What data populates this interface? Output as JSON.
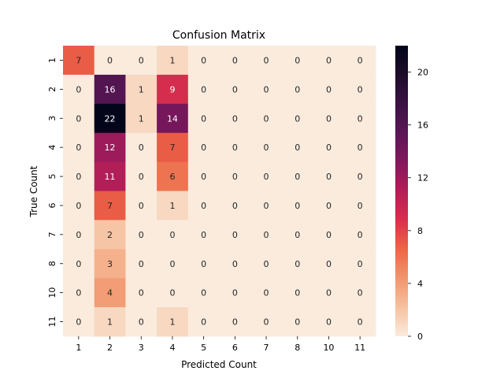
{
  "chart_data": {
    "type": "heatmap",
    "title": "Confusion Matrix",
    "xlabel": "Predicted Count",
    "ylabel": "True Count",
    "x_categories": [
      "1",
      "2",
      "3",
      "4",
      "5",
      "6",
      "7",
      "8",
      "10",
      "11"
    ],
    "y_categories": [
      "1",
      "2",
      "3",
      "4",
      "5",
      "6",
      "7",
      "8",
      "10",
      "11"
    ],
    "values": [
      [
        7,
        0,
        0,
        1,
        0,
        0,
        0,
        0,
        0,
        0
      ],
      [
        0,
        16,
        1,
        9,
        0,
        0,
        0,
        0,
        0,
        0
      ],
      [
        0,
        22,
        1,
        14,
        0,
        0,
        0,
        0,
        0,
        0
      ],
      [
        0,
        12,
        0,
        7,
        0,
        0,
        0,
        0,
        0,
        0
      ],
      [
        0,
        11,
        0,
        6,
        0,
        0,
        0,
        0,
        0,
        0
      ],
      [
        0,
        7,
        0,
        1,
        0,
        0,
        0,
        0,
        0,
        0
      ],
      [
        0,
        2,
        0,
        0,
        0,
        0,
        0,
        0,
        0,
        0
      ],
      [
        0,
        3,
        0,
        0,
        0,
        0,
        0,
        0,
        0,
        0
      ],
      [
        0,
        4,
        0,
        0,
        0,
        0,
        0,
        0,
        0,
        0
      ],
      [
        0,
        1,
        0,
        1,
        0,
        0,
        0,
        0,
        0,
        0
      ]
    ],
    "colorbar": {
      "range": [
        0,
        22
      ],
      "ticks": [
        0,
        4,
        8,
        12,
        16,
        20
      ],
      "colormap": "rocket_r"
    },
    "colormap_stops": [
      "#faebdd",
      "#f6c19f",
      "#f1956c",
      "#ed6645",
      "#d92f4c",
      "#b21e58",
      "#84175c",
      "#5b1656",
      "#3a1242",
      "#1e0d29",
      "#03051a"
    ]
  }
}
